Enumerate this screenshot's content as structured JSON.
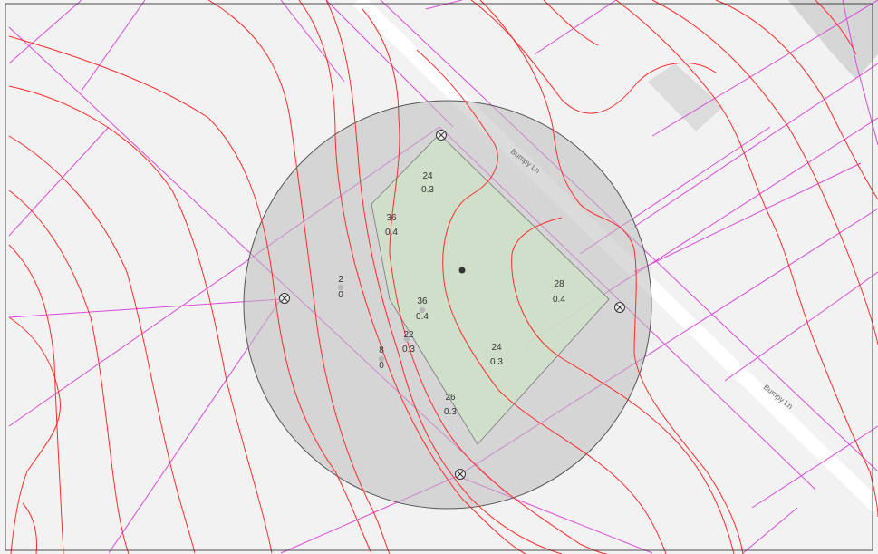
{
  "map": {
    "road_labels": [
      "Bumpy Ln",
      "Bumpy Ln"
    ],
    "colors": {
      "background": "#f2f2f2",
      "contour": "#ff2a2a",
      "parcel_line": "#d84cd8",
      "road": "#ffffff",
      "building": "#d6d6d6",
      "buffer_fill": "#bdbdbd",
      "selection_fill": "#cfe0c8"
    },
    "points": [
      {
        "top": "24",
        "bottom": "0.3"
      },
      {
        "top": "36",
        "bottom": "0.4"
      },
      {
        "top": "2",
        "bottom": "0"
      },
      {
        "top": "36",
        "bottom": "0.4"
      },
      {
        "top": "22",
        "bottom": "0.3"
      },
      {
        "top": "8",
        "bottom": "0"
      },
      {
        "top": "24",
        "bottom": "0.3"
      },
      {
        "top": "28",
        "bottom": "0.4"
      },
      {
        "top": "26",
        "bottom": "0.3"
      }
    ],
    "icons": [
      "vertex-marker-icon",
      "center-point-icon"
    ]
  }
}
